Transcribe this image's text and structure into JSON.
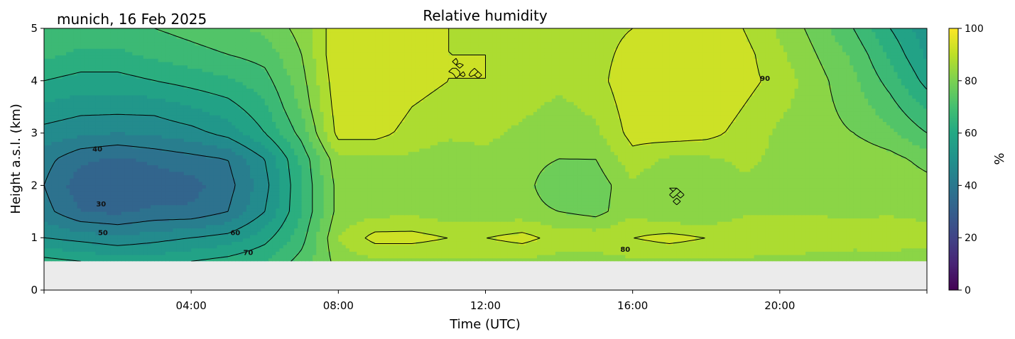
{
  "chart_data": {
    "type": "heatmap",
    "title": "Relative humidity",
    "subtitle": "munich, 16 Feb 2025",
    "xlabel": "Time (UTC)",
    "ylabel": "Height a.s.l. (km)",
    "xlim": [
      0,
      24
    ],
    "ylim": [
      0,
      5
    ],
    "x_ticks": [
      {
        "value": 4,
        "label": "04:00"
      },
      {
        "value": 8,
        "label": "08:00"
      },
      {
        "value": 12,
        "label": "12:00"
      },
      {
        "value": 16,
        "label": "16:00"
      },
      {
        "value": 20,
        "label": "20:00"
      }
    ],
    "y_ticks": [
      {
        "value": 0,
        "label": "0"
      },
      {
        "value": 1,
        "label": "1"
      },
      {
        "value": 2,
        "label": "2"
      },
      {
        "value": 3,
        "label": "3"
      },
      {
        "value": 4,
        "label": "4"
      },
      {
        "value": 5,
        "label": "5"
      }
    ],
    "colorbar": {
      "label": "%",
      "range": [
        0,
        100
      ],
      "colormap": "viridis",
      "ticks": [
        {
          "value": 0,
          "label": "0"
        },
        {
          "value": 20,
          "label": "20"
        },
        {
          "value": 40,
          "label": "40"
        },
        {
          "value": 60,
          "label": "60"
        },
        {
          "value": 80,
          "label": "80"
        },
        {
          "value": 100,
          "label": "100"
        }
      ]
    },
    "no_data_below_km": 0.55,
    "grid": false,
    "x": [
      0,
      1,
      2,
      3,
      4,
      5,
      6,
      7,
      8,
      9,
      10,
      11,
      12,
      13,
      14,
      15,
      16,
      17,
      18,
      19,
      20,
      21,
      22,
      23,
      24
    ],
    "y": [
      0.55,
      1.0,
      1.5,
      2.0,
      2.5,
      3.0,
      3.5,
      4.0,
      4.5,
      5.0
    ],
    "z": [
      [
        62,
        60,
        58,
        58,
        60,
        62,
        65,
        72,
        82,
        84,
        84,
        84,
        84,
        84,
        83,
        83,
        84,
        84,
        84,
        84,
        83,
        82,
        82,
        81,
        80
      ],
      [
        50,
        48,
        46,
        48,
        50,
        52,
        58,
        68,
        85,
        92,
        92,
        90,
        90,
        92,
        88,
        88,
        90,
        92,
        90,
        90,
        90,
        90,
        88,
        90,
        88
      ],
      [
        42,
        35,
        34,
        36,
        36,
        40,
        50,
        65,
        82,
        83,
        84,
        82,
        82,
        82,
        80,
        78,
        84,
        80,
        80,
        84,
        84,
        84,
        84,
        84,
        83
      ],
      [
        40,
        32,
        30,
        32,
        33,
        38,
        48,
        65,
        82,
        82,
        83,
        80,
        82,
        82,
        76,
        77,
        84,
        80,
        80,
        84,
        84,
        84,
        84,
        84,
        82
      ],
      [
        42,
        36,
        34,
        36,
        38,
        40,
        50,
        66,
        84,
        84,
        84,
        82,
        84,
        82,
        80,
        80,
        88,
        84,
        84,
        86,
        84,
        84,
        84,
        82,
        78
      ],
      [
        48,
        46,
        45,
        46,
        48,
        52,
        60,
        72,
        92,
        92,
        88,
        86,
        86,
        84,
        82,
        84,
        92,
        93,
        92,
        88,
        84,
        82,
        80,
        76,
        70
      ],
      [
        54,
        52,
        52,
        52,
        55,
        58,
        64,
        76,
        93,
        94,
        90,
        88,
        88,
        86,
        84,
        86,
        93,
        94,
        94,
        90,
        86,
        82,
        78,
        72,
        64
      ],
      [
        60,
        58,
        58,
        60,
        62,
        64,
        68,
        78,
        94,
        95,
        92,
        90,
        90,
        88,
        86,
        88,
        94,
        95,
        95,
        92,
        88,
        82,
        76,
        68,
        58
      ],
      [
        66,
        64,
        64,
        66,
        68,
        70,
        72,
        80,
        95,
        95,
        92,
        90,
        90,
        88,
        86,
        88,
        92,
        95,
        94,
        92,
        86,
        80,
        74,
        64,
        54
      ],
      [
        70,
        68,
        68,
        70,
        72,
        74,
        76,
        82,
        94,
        94,
        92,
        90,
        88,
        88,
        86,
        88,
        90,
        94,
        92,
        90,
        84,
        78,
        70,
        60,
        52
      ]
    ],
    "contour_levels": [
      30,
      40,
      50,
      60,
      70,
      80,
      90
    ],
    "contour_labels": [
      {
        "text": "40",
        "x": 1.45,
        "y": 2.65
      },
      {
        "text": "30",
        "x": 1.55,
        "y": 1.6
      },
      {
        "text": "50",
        "x": 1.6,
        "y": 1.05
      },
      {
        "text": "60",
        "x": 5.2,
        "y": 1.05
      },
      {
        "text": "70",
        "x": 5.55,
        "y": 0.67
      },
      {
        "text": "80",
        "x": 15.8,
        "y": 0.73
      },
      {
        "text": "90",
        "x": 19.6,
        "y": 4.0
      }
    ]
  }
}
